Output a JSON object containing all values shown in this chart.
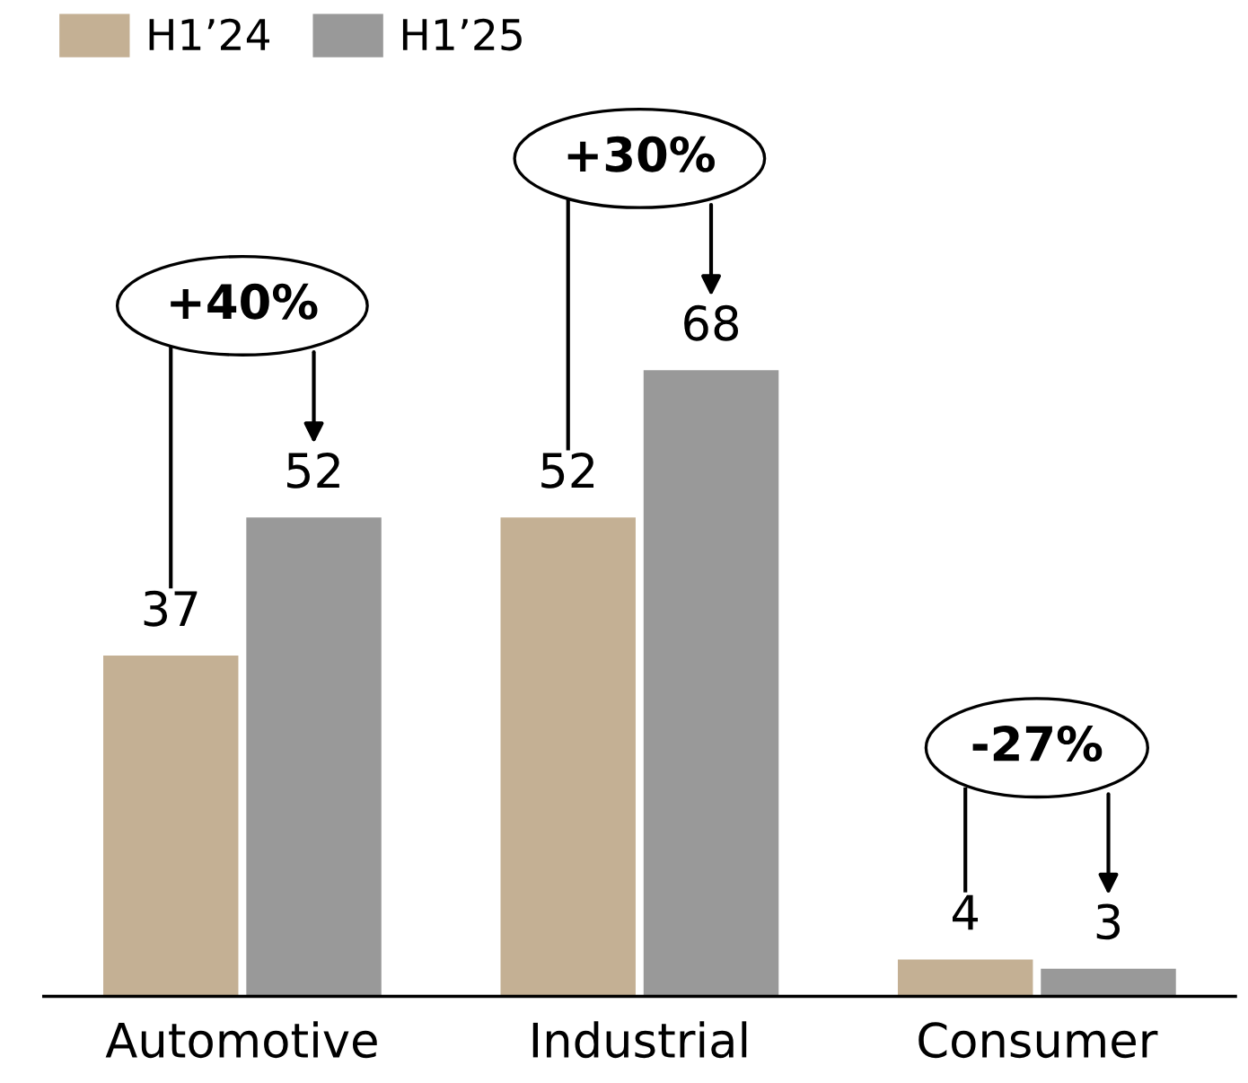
{
  "chart_data": {
    "type": "bar",
    "categories": [
      "Automotive",
      "Industrial",
      "Consumer"
    ],
    "series": [
      {
        "name": "H1’24",
        "color": "#c4b094",
        "values": [
          37,
          52,
          4
        ]
      },
      {
        "name": "H1’25",
        "color": "#999999",
        "values": [
          52,
          68,
          3
        ]
      }
    ],
    "data_labels": true,
    "legend": "top left",
    "tick_labels": "x",
    "grid": false,
    "annotations": [
      "+40%",
      "+30%",
      "-27%"
    ]
  }
}
